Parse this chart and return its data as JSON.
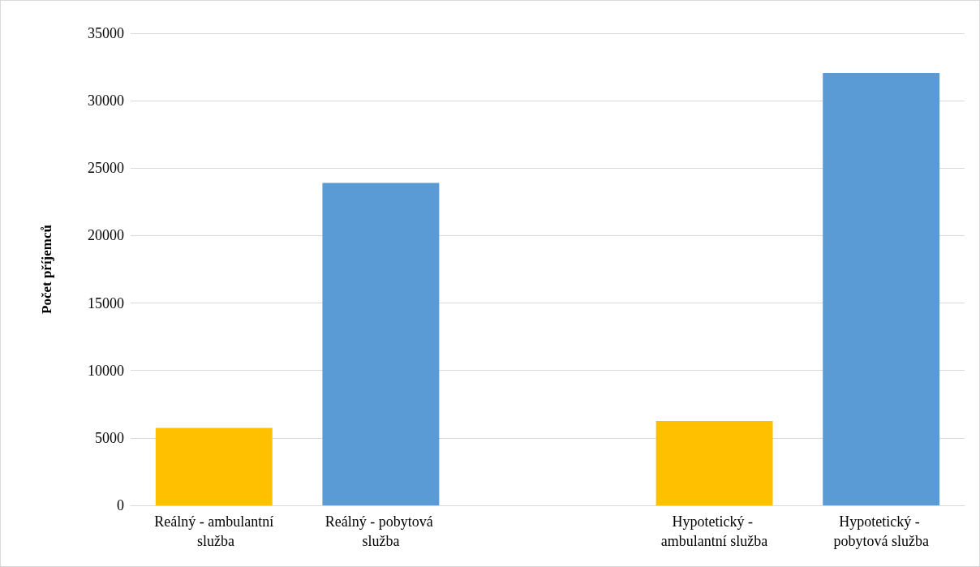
{
  "chart_data": {
    "type": "bar",
    "ylabel": "Počet příjemců",
    "categories": [
      "Reálný - ambulantní služba",
      "Reálný - pobytová služba",
      null,
      "Hypotetický - ambulantní služba",
      "Hypotetický - pobytová služba"
    ],
    "values": [
      5750,
      23900,
      null,
      6250,
      32050
    ],
    "colors": [
      "#ffc000",
      "#5b9bd5",
      null,
      "#ffc000",
      "#5b9bd5"
    ],
    "ylim": [
      0,
      35000
    ],
    "yticks": [
      0,
      5000,
      10000,
      15000,
      20000,
      25000,
      30000,
      35000
    ],
    "grid": "y"
  }
}
